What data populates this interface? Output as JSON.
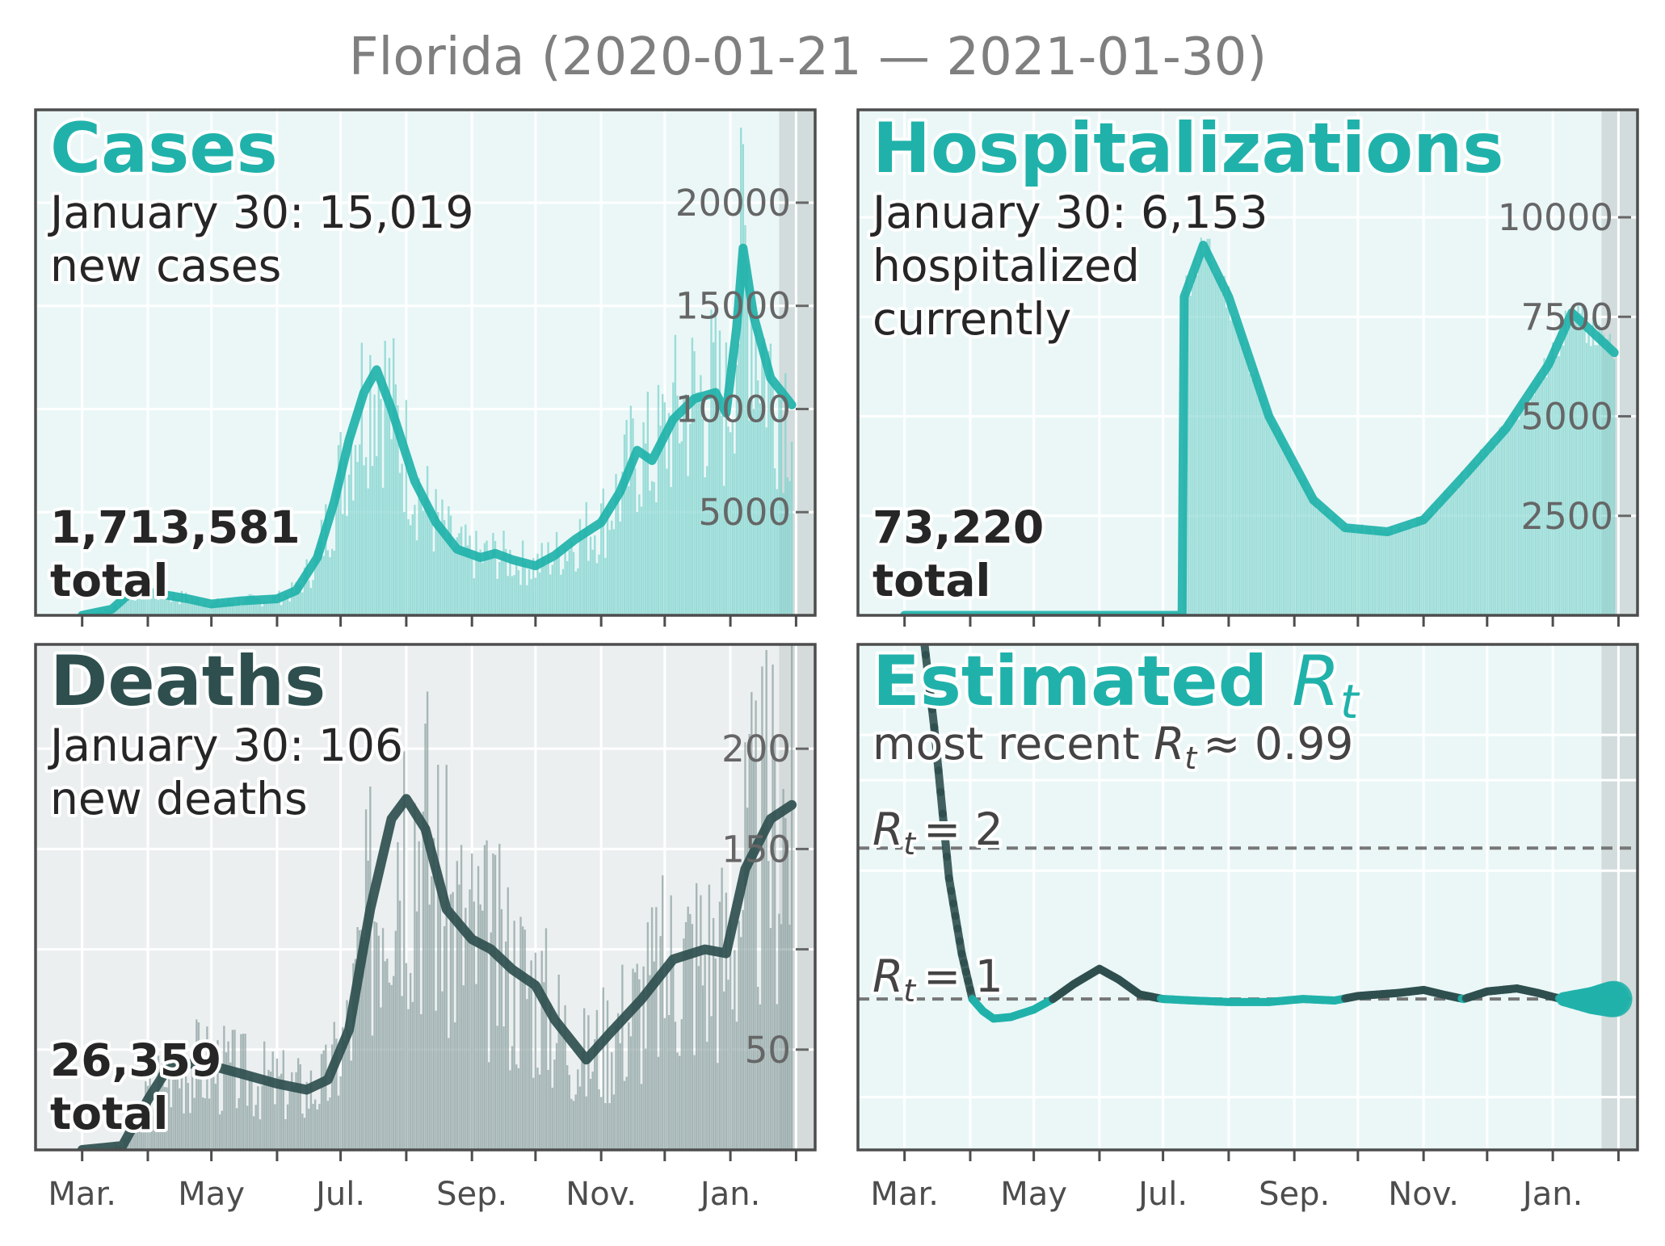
{
  "figure": {
    "title": "Florida (2020-01-21 — 2021-01-30)",
    "accent_color": "#20b2aa",
    "dark_color": "#2f4f4f"
  },
  "panels": {
    "cases": {
      "title": "Cases",
      "latest_line1": "January 30: 15,019",
      "latest_line2": "new cases",
      "total_value": "1,713,581",
      "total_label": "total"
    },
    "hospitalizations": {
      "title": "Hospitalizations",
      "latest_line1": "January 30: 6,153",
      "latest_line2": "hospitalized",
      "latest_line3": "currently",
      "total_value": "73,220",
      "total_label": "total"
    },
    "deaths": {
      "title": "Deaths",
      "latest_line1": "January 30: 106",
      "latest_line2": "new deaths",
      "total_value": "26,359",
      "total_label": "total"
    },
    "rt": {
      "title_main": "Estimated",
      "title_symbol": "R",
      "title_sub": "t",
      "recent_prefix": "most recent",
      "recent_symbol": "R",
      "recent_sub": "t",
      "recent_value": "≈ 0.99",
      "ref2_symbol": "R",
      "ref2_sub": "t",
      "ref2_value": "= 2",
      "ref1_symbol": "R",
      "ref1_sub": "t",
      "ref1_value": "= 1"
    }
  },
  "chart_data": [
    {
      "type": "bar",
      "panel": "cases",
      "series": [
        {
          "name": "daily new cases",
          "type": "bar"
        },
        {
          "name": "7-day average",
          "type": "line"
        }
      ],
      "x_ticks": [
        "Mar.",
        "May",
        "Jul.",
        "Sep.",
        "Nov.",
        "Jan."
      ],
      "y_ticks": [
        "5000",
        "10000",
        "15000",
        "20000"
      ],
      "ylim": [
        0,
        24500
      ],
      "avg_points": [
        [
          "2020-03-01",
          0
        ],
        [
          "2020-03-15",
          300
        ],
        [
          "2020-03-25",
          1200
        ],
        [
          "2020-04-03",
          1100
        ],
        [
          "2020-04-20",
          800
        ],
        [
          "2020-05-01",
          550
        ],
        [
          "2020-05-15",
          700
        ],
        [
          "2020-06-01",
          800
        ],
        [
          "2020-06-10",
          1200
        ],
        [
          "2020-06-20",
          2800
        ],
        [
          "2020-06-28",
          5500
        ],
        [
          "2020-07-05",
          8500
        ],
        [
          "2020-07-12",
          10800
        ],
        [
          "2020-07-18",
          11900
        ],
        [
          "2020-07-25",
          10000
        ],
        [
          "2020-08-05",
          6500
        ],
        [
          "2020-08-15",
          4500
        ],
        [
          "2020-08-25",
          3200
        ],
        [
          "2020-09-05",
          2800
        ],
        [
          "2020-09-12",
          3000
        ],
        [
          "2020-09-20",
          2700
        ],
        [
          "2020-10-01",
          2400
        ],
        [
          "2020-10-10",
          2900
        ],
        [
          "2020-10-20",
          3700
        ],
        [
          "2020-11-01",
          4500
        ],
        [
          "2020-11-10",
          6000
        ],
        [
          "2020-11-18",
          8000
        ],
        [
          "2020-11-25",
          7500
        ],
        [
          "2020-12-05",
          9500
        ],
        [
          "2020-12-15",
          10500
        ],
        [
          "2020-12-25",
          10800
        ],
        [
          "2020-12-30",
          9800
        ],
        [
          "2021-01-04",
          14000
        ],
        [
          "2021-01-07",
          17800
        ],
        [
          "2021-01-12",
          14500
        ],
        [
          "2021-01-20",
          11500
        ],
        [
          "2021-01-30",
          10200
        ]
      ]
    },
    {
      "type": "bar",
      "panel": "hospitalizations",
      "series": [
        {
          "name": "currently hospitalized",
          "type": "bar"
        },
        {
          "name": "7-day average",
          "type": "line"
        }
      ],
      "x_ticks": [
        "Mar.",
        "May",
        "Jul.",
        "Sep.",
        "Nov.",
        "Jan."
      ],
      "y_ticks": [
        "2500",
        "5000",
        "7500",
        "10000"
      ],
      "ylim": [
        0,
        12700
      ],
      "avg_points": [
        [
          "2020-03-01",
          0
        ],
        [
          "2020-07-10",
          0
        ],
        [
          "2020-07-11",
          8000
        ],
        [
          "2020-07-20",
          9300
        ],
        [
          "2020-08-01",
          8000
        ],
        [
          "2020-08-20",
          5000
        ],
        [
          "2020-09-10",
          2900
        ],
        [
          "2020-09-25",
          2200
        ],
        [
          "2020-10-15",
          2100
        ],
        [
          "2020-11-01",
          2400
        ],
        [
          "2020-11-20",
          3500
        ],
        [
          "2020-12-10",
          4700
        ],
        [
          "2020-12-30",
          6300
        ],
        [
          "2021-01-10",
          7600
        ],
        [
          "2021-01-20",
          7100
        ],
        [
          "2021-01-30",
          6600
        ]
      ]
    },
    {
      "type": "bar",
      "panel": "deaths",
      "series": [
        {
          "name": "daily new deaths",
          "type": "bar"
        },
        {
          "name": "7-day average",
          "type": "line"
        }
      ],
      "x_ticks": [
        "Mar.",
        "May",
        "Jul.",
        "Sep.",
        "Nov.",
        "Jan."
      ],
      "y_ticks": [
        "50",
        "150",
        "200"
      ],
      "ylim": [
        0,
        252
      ],
      "avg_points": [
        [
          "2020-03-01",
          0
        ],
        [
          "2020-03-20",
          2
        ],
        [
          "2020-04-01",
          25
        ],
        [
          "2020-04-10",
          40
        ],
        [
          "2020-04-20",
          43
        ],
        [
          "2020-05-01",
          42
        ],
        [
          "2020-05-15",
          38
        ],
        [
          "2020-06-01",
          33
        ],
        [
          "2020-06-15",
          30
        ],
        [
          "2020-06-25",
          35
        ],
        [
          "2020-07-05",
          60
        ],
        [
          "2020-07-15",
          120
        ],
        [
          "2020-07-25",
          165
        ],
        [
          "2020-08-01",
          175
        ],
        [
          "2020-08-10",
          160
        ],
        [
          "2020-08-20",
          120
        ],
        [
          "2020-09-01",
          105
        ],
        [
          "2020-09-10",
          100
        ],
        [
          "2020-09-20",
          90
        ],
        [
          "2020-10-01",
          82
        ],
        [
          "2020-10-10",
          65
        ],
        [
          "2020-10-25",
          45
        ],
        [
          "2020-11-05",
          58
        ],
        [
          "2020-11-20",
          75
        ],
        [
          "2020-12-05",
          95
        ],
        [
          "2020-12-20",
          100
        ],
        [
          "2020-12-30",
          98
        ],
        [
          "2021-01-08",
          140
        ],
        [
          "2021-01-20",
          165
        ],
        [
          "2021-01-30",
          172
        ]
      ]
    },
    {
      "type": "line",
      "panel": "rt",
      "series": [
        {
          "name": "Rt estimate",
          "type": "line"
        }
      ],
      "x_ticks": [
        "Mar.",
        "May",
        "Jul.",
        "Sep.",
        "Nov.",
        "Jan."
      ],
      "reference_lines": [
        1,
        2
      ],
      "ylim": [
        0,
        3.35
      ],
      "points": [
        [
          "2020-03-10",
          3.4
        ],
        [
          "2020-03-15",
          2.8
        ],
        [
          "2020-03-22",
          1.8
        ],
        [
          "2020-03-28",
          1.3
        ],
        [
          "2020-04-02",
          1.0
        ],
        [
          "2020-04-07",
          0.92
        ],
        [
          "2020-04-12",
          0.87
        ],
        [
          "2020-04-20",
          0.88
        ],
        [
          "2020-05-01",
          0.93
        ],
        [
          "2020-05-10",
          1.0
        ],
        [
          "2020-05-20",
          1.1
        ],
        [
          "2020-06-01",
          1.2
        ],
        [
          "2020-06-10",
          1.13
        ],
        [
          "2020-06-20",
          1.03
        ],
        [
          "2020-07-01",
          1.0
        ],
        [
          "2020-07-15",
          0.99
        ],
        [
          "2020-08-01",
          0.98
        ],
        [
          "2020-08-20",
          0.98
        ],
        [
          "2020-09-05",
          1.0
        ],
        [
          "2020-09-20",
          0.99
        ],
        [
          "2020-10-01",
          1.02
        ],
        [
          "2020-10-20",
          1.04
        ],
        [
          "2020-11-01",
          1.06
        ],
        [
          "2020-11-10",
          1.03
        ],
        [
          "2020-11-20",
          1.0
        ],
        [
          "2020-12-01",
          1.05
        ],
        [
          "2020-12-15",
          1.07
        ],
        [
          "2020-12-25",
          1.04
        ],
        [
          "2021-01-05",
          1.0
        ],
        [
          "2021-01-20",
          0.99
        ],
        [
          "2021-01-30",
          1.0
        ]
      ]
    }
  ]
}
